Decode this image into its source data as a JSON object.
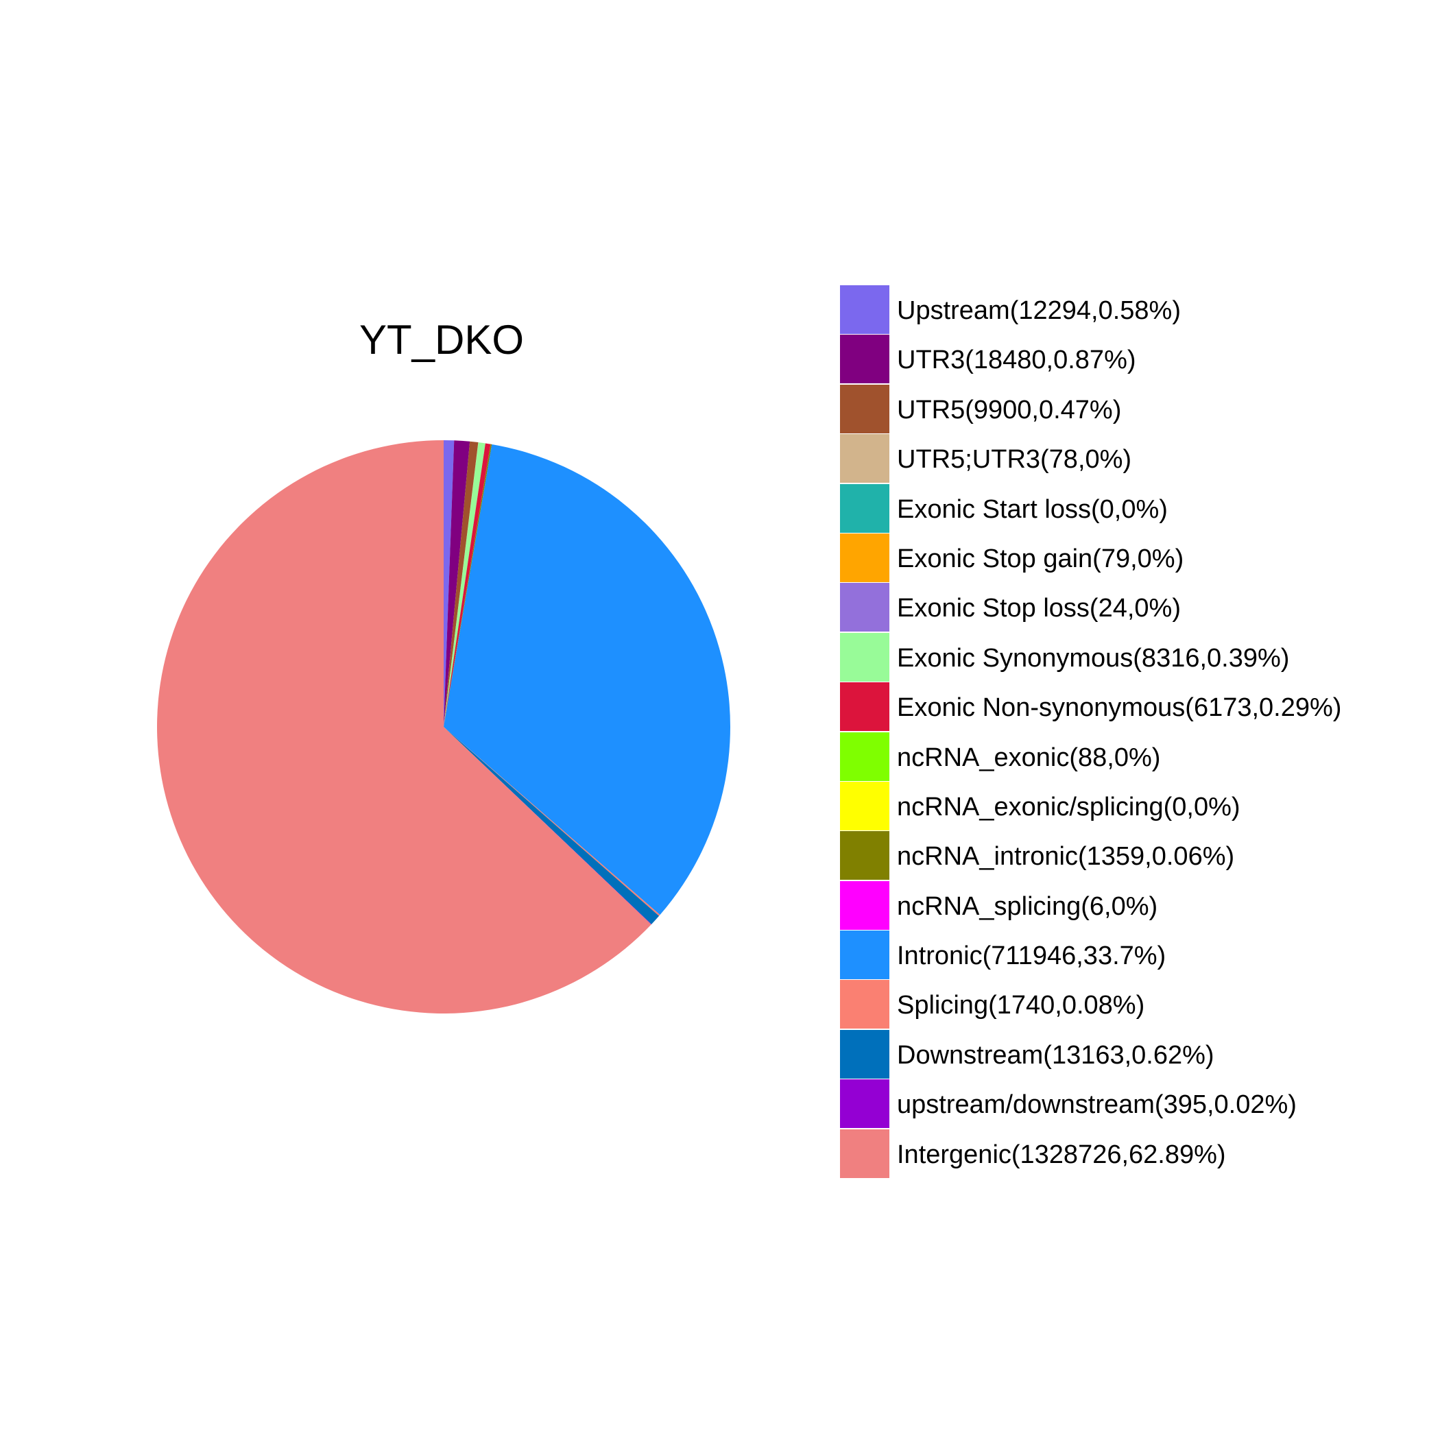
{
  "chart_data": {
    "type": "pie",
    "title": "YT_DKO",
    "start_angle_deg": 0,
    "direction": "clockwise",
    "legend_position": "right",
    "slices": [
      {
        "label": "Upstream(12294,0.58%)",
        "value": 12294,
        "percent": 0.58,
        "color": "#7B68EE"
      },
      {
        "label": "UTR3(18480,0.87%)",
        "value": 18480,
        "percent": 0.87,
        "color": "#800080"
      },
      {
        "label": "UTR5(9900,0.47%)",
        "value": 9900,
        "percent": 0.47,
        "color": "#A0522D"
      },
      {
        "label": "UTR5;UTR3(78,0%)",
        "value": 78,
        "percent": 0,
        "color": "#D2B48C"
      },
      {
        "label": "Exonic Start loss(0,0%)",
        "value": 0,
        "percent": 0,
        "color": "#20B2AA"
      },
      {
        "label": "Exonic Stop gain(79,0%)",
        "value": 79,
        "percent": 0,
        "color": "#FFA500"
      },
      {
        "label": "Exonic Stop loss(24,0%)",
        "value": 24,
        "percent": 0,
        "color": "#9370DB"
      },
      {
        "label": "Exonic Synonymous(8316,0.39%)",
        "value": 8316,
        "percent": 0.39,
        "color": "#98FB98"
      },
      {
        "label": "Exonic Non-synonymous(6173,0.29%)",
        "value": 6173,
        "percent": 0.29,
        "color": "#DC143C"
      },
      {
        "label": "ncRNA_exonic(88,0%)",
        "value": 88,
        "percent": 0,
        "color": "#7FFF00"
      },
      {
        "label": "ncRNA_exonic/splicing(0,0%)",
        "value": 0,
        "percent": 0,
        "color": "#FFFF00"
      },
      {
        "label": "ncRNA_intronic(1359,0.06%)",
        "value": 1359,
        "percent": 0.06,
        "color": "#808000"
      },
      {
        "label": "ncRNA_splicing(6,0%)",
        "value": 6,
        "percent": 0,
        "color": "#FF00FF"
      },
      {
        "label": "Intronic(711946,33.7%)",
        "value": 711946,
        "percent": 33.7,
        "color": "#1E90FF"
      },
      {
        "label": "Splicing(1740,0.08%)",
        "value": 1740,
        "percent": 0.08,
        "color": "#FA8072"
      },
      {
        "label": "Downstream(13163,0.62%)",
        "value": 13163,
        "percent": 0.62,
        "color": "#0070BB"
      },
      {
        "label": "upstream/downstream(395,0.02%)",
        "value": 395,
        "percent": 0.02,
        "color": "#9400D3"
      },
      {
        "label": "Intergenic(1328726,62.89%)",
        "value": 1328726,
        "percent": 62.89,
        "color": "#F08080"
      }
    ]
  }
}
